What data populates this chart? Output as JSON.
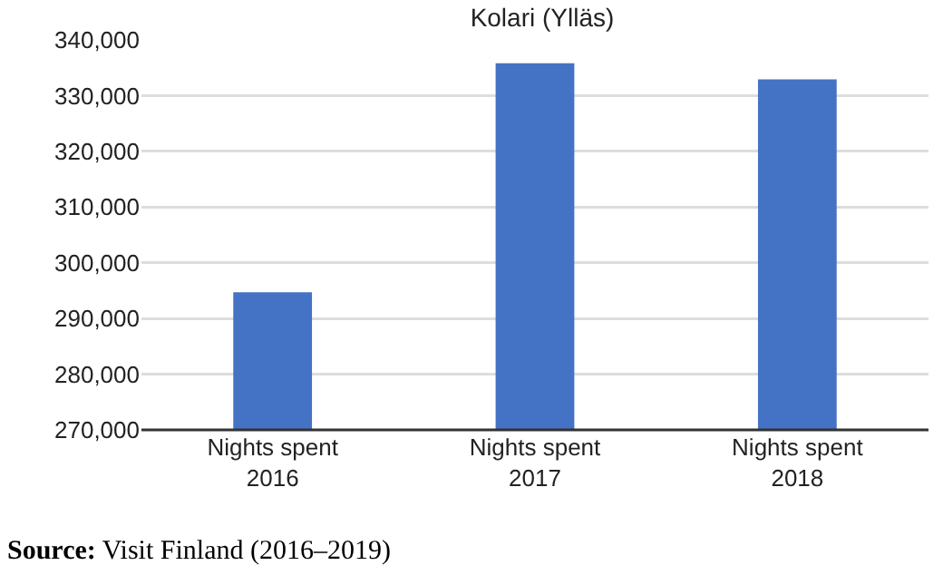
{
  "chart_data": {
    "type": "bar",
    "title": "Kolari (Ylläs)",
    "categories": [
      "Nights spent\n2016",
      "Nights spent\n2017",
      "Nights spent\n2018"
    ],
    "values": [
      294700,
      335800,
      332900
    ],
    "color": "#4472c4",
    "ylim": [
      270000,
      340000
    ],
    "yticks": [
      {
        "value": 270000,
        "label": "270,000"
      },
      {
        "value": 280000,
        "label": "280,000"
      },
      {
        "value": 290000,
        "label": "290,000"
      },
      {
        "value": 300000,
        "label": "300,000"
      },
      {
        "value": 310000,
        "label": "310,000"
      },
      {
        "value": 320000,
        "label": "320,000"
      },
      {
        "value": 330000,
        "label": "330,000"
      },
      {
        "value": 340000,
        "label": "340,000"
      }
    ],
    "grid": "y",
    "annotations": [
      "Source: Visit Finland (2016–2019)"
    ]
  }
}
